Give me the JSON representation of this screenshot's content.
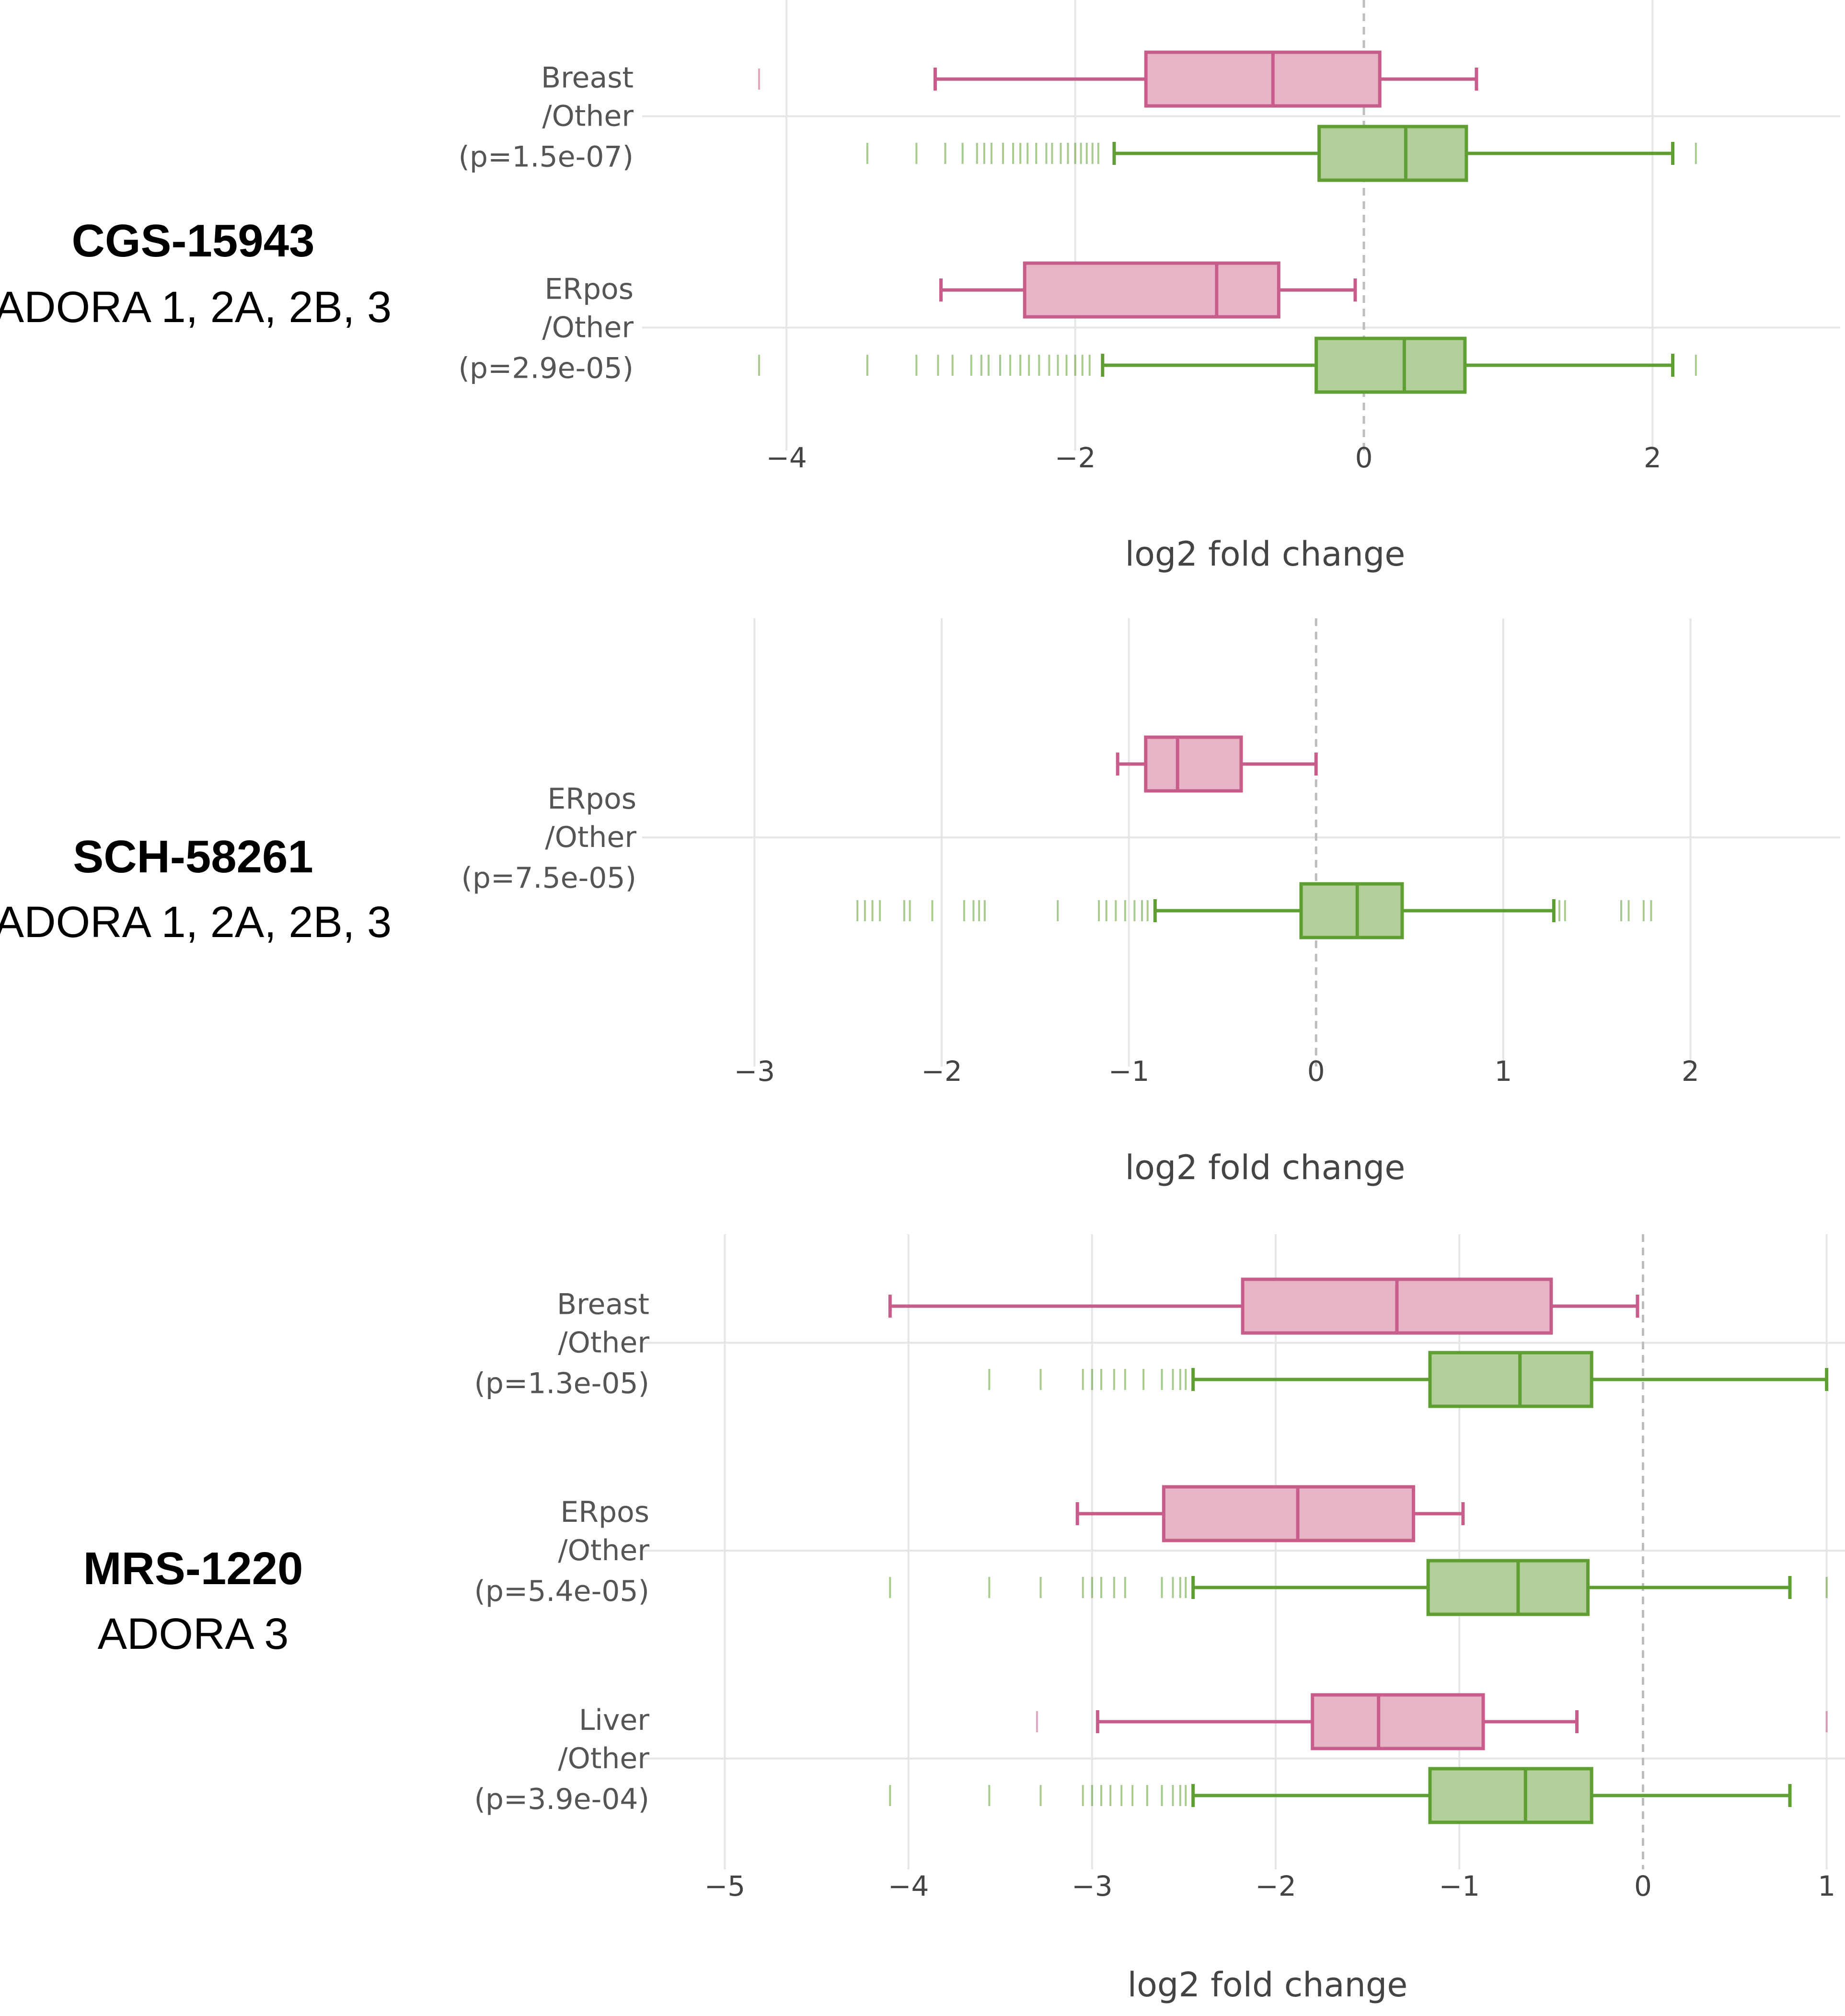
{
  "colors": {
    "pink_fill": "#e8b4c8",
    "pink_stroke": "#c85c8a",
    "green_fill": "#b2cf9a",
    "green_stroke": "#5e9e32",
    "grid": "#e6e6e6",
    "zero_line": "#bdbdbd"
  },
  "chart_data": [
    {
      "type": "box",
      "panel_title": "CGS-15943",
      "panel_subtitle": "ADORA 1, 2A, 2B, 3",
      "xlabel": "log2 fold change",
      "xlim": [
        -5.0,
        3.3
      ],
      "xticks": [
        -4,
        -2,
        0,
        2
      ],
      "xtick_labels": [
        "−4",
        "−2",
        "0",
        "2"
      ],
      "groups": [
        {
          "label": [
            "Breast",
            "/Other",
            "(p=1.5e-07)"
          ],
          "boxes": [
            {
              "series": "selected",
              "color": "pink",
              "whisker_low": -2.97,
              "q1": -1.51,
              "median": -0.63,
              "q3": 0.11,
              "whisker_high": 0.78,
              "outliers": [
                -4.19
              ]
            },
            {
              "series": "other",
              "color": "green",
              "whisker_low": -1.73,
              "q1": -0.31,
              "median": 0.29,
              "q3": 0.71,
              "whisker_high": 2.14,
              "outliers": [
                -3.44,
                -3.1,
                -2.9,
                -2.78,
                -2.68,
                -2.63,
                -2.58,
                -2.5,
                -2.43,
                -2.38,
                -2.33,
                -2.27,
                -2.2,
                -2.16,
                -2.1,
                -2.05,
                -2.0,
                -1.96,
                -1.92,
                -1.88,
                -1.84,
                2.3
              ]
            }
          ]
        },
        {
          "label": [
            "ERpos",
            "/Other",
            "(p=2.9e-05)"
          ],
          "boxes": [
            {
              "series": "selected",
              "color": "pink",
              "whisker_low": -2.93,
              "q1": -2.35,
              "median": -1.02,
              "q3": -0.59,
              "whisker_high": -0.06,
              "outliers": []
            },
            {
              "series": "other",
              "color": "green",
              "whisker_low": -1.81,
              "q1": -0.33,
              "median": 0.28,
              "q3": 0.7,
              "whisker_high": 2.14,
              "outliers": [
                -4.19,
                -3.44,
                -3.1,
                -2.95,
                -2.85,
                -2.72,
                -2.65,
                -2.6,
                -2.52,
                -2.45,
                -2.38,
                -2.32,
                -2.25,
                -2.18,
                -2.12,
                -2.06,
                -2.0,
                -1.95,
                -1.9,
                2.3
              ]
            }
          ]
        }
      ]
    },
    {
      "type": "box",
      "panel_title": "SCH-58261",
      "panel_subtitle": "ADORA 1, 2A, 2B, 3",
      "xlabel": "log2 fold change",
      "xlim": [
        -3.6,
        2.8
      ],
      "xticks": [
        -3,
        -2,
        -1,
        0,
        1,
        2
      ],
      "xtick_labels": [
        "−3",
        "−2",
        "−1",
        "0",
        "1",
        "2"
      ],
      "groups": [
        {
          "label": [
            "ERpos",
            "/Other",
            "(p=7.5e-05)"
          ],
          "boxes": [
            {
              "series": "selected",
              "color": "pink",
              "whisker_low": -1.06,
              "q1": -0.91,
              "median": -0.74,
              "q3": -0.4,
              "whisker_high": 0.0,
              "outliers": []
            },
            {
              "series": "other",
              "color": "green",
              "whisker_low": -0.86,
              "q1": -0.08,
              "median": 0.22,
              "q3": 0.46,
              "whisker_high": 1.27,
              "outliers": [
                -2.45,
                -2.41,
                -2.37,
                -2.33,
                -2.2,
                -2.17,
                -2.05,
                -1.88,
                -1.83,
                -1.8,
                -1.77,
                -1.38,
                -1.16,
                -1.12,
                -1.07,
                -1.02,
                -0.97,
                -0.93,
                -0.9,
                1.3,
                1.33,
                1.63,
                1.67,
                1.75,
                1.79
              ]
            }
          ]
        }
      ]
    },
    {
      "type": "box",
      "panel_title": "MRS-1220",
      "panel_subtitle": "ADORA 3",
      "xlabel": "log2 fold change",
      "xlim": [
        -5.45,
        1.1
      ],
      "xticks": [
        -5,
        -4,
        -3,
        -2,
        -1,
        0,
        1
      ],
      "xtick_labels": [
        "−5",
        "−4",
        "−3",
        "−2",
        "−1",
        "0",
        "1"
      ],
      "groups": [
        {
          "label": [
            "Breast",
            "/Other",
            "(p=1.3e-05)"
          ],
          "boxes": [
            {
              "series": "selected",
              "color": "pink",
              "whisker_low": -4.1,
              "q1": -2.18,
              "median": -1.34,
              "q3": -0.5,
              "whisker_high": -0.03,
              "outliers": []
            },
            {
              "series": "other",
              "color": "green",
              "whisker_low": -2.45,
              "q1": -1.16,
              "median": -0.67,
              "q3": -0.28,
              "whisker_high": 1.0,
              "outliers": [
                -3.56,
                -3.28,
                -3.05,
                -3.0,
                -2.95,
                -2.88,
                -2.82,
                -2.72,
                -2.62,
                -2.56,
                -2.52,
                -2.49
              ]
            }
          ]
        },
        {
          "label": [
            "ERpos",
            "/Other",
            "(p=5.4e-05)"
          ],
          "boxes": [
            {
              "series": "selected",
              "color": "pink",
              "whisker_low": -3.08,
              "q1": -2.61,
              "median": -1.88,
              "q3": -1.25,
              "whisker_high": -0.98,
              "outliers": []
            },
            {
              "series": "other",
              "color": "green",
              "whisker_low": -2.45,
              "q1": -1.17,
              "median": -0.68,
              "q3": -0.3,
              "whisker_high": 0.8,
              "outliers": [
                -4.1,
                -3.56,
                -3.28,
                -3.05,
                -3.0,
                -2.95,
                -2.88,
                -2.82,
                -2.62,
                -2.56,
                -2.52,
                -2.49,
                1.0
              ]
            }
          ]
        },
        {
          "label": [
            "Liver",
            "/Other",
            "(p=3.9e-04)"
          ],
          "boxes": [
            {
              "series": "selected",
              "color": "pink",
              "whisker_low": -2.97,
              "q1": -1.8,
              "median": -1.44,
              "q3": -0.87,
              "whisker_high": -0.36,
              "outliers": [
                -3.3,
                1.0
              ]
            },
            {
              "series": "other",
              "color": "green",
              "whisker_low": -2.45,
              "q1": -1.16,
              "median": -0.64,
              "q3": -0.28,
              "whisker_high": 0.8,
              "outliers": [
                -4.1,
                -3.56,
                -3.28,
                -3.05,
                -3.0,
                -2.95,
                -2.9,
                -2.84,
                -2.78,
                -2.7,
                -2.62,
                -2.56,
                -2.52,
                -2.49
              ]
            }
          ]
        }
      ]
    }
  ]
}
